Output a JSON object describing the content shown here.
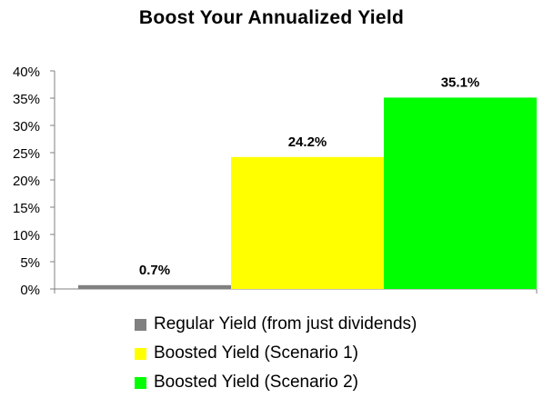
{
  "chart_data": {
    "type": "bar",
    "title": "Boost Your Annualized Yield",
    "ylim": [
      0,
      40
    ],
    "yticks": [
      "0%",
      "5%",
      "10%",
      "15%",
      "20%",
      "25%",
      "30%",
      "35%",
      "40%"
    ],
    "series": [
      {
        "name": "Regular Yield (from just dividends)",
        "value": 0.7,
        "label": "0.7%",
        "color": "#808080"
      },
      {
        "name": "Boosted Yield (Scenario 1)",
        "value": 24.2,
        "label": "24.2%",
        "color": "#ffff00"
      },
      {
        "name": "Boosted Yield (Scenario 2)",
        "value": 35.1,
        "label": "35.1%",
        "color": "#00ff00"
      }
    ],
    "grid": false,
    "legend_position": "bottom"
  }
}
